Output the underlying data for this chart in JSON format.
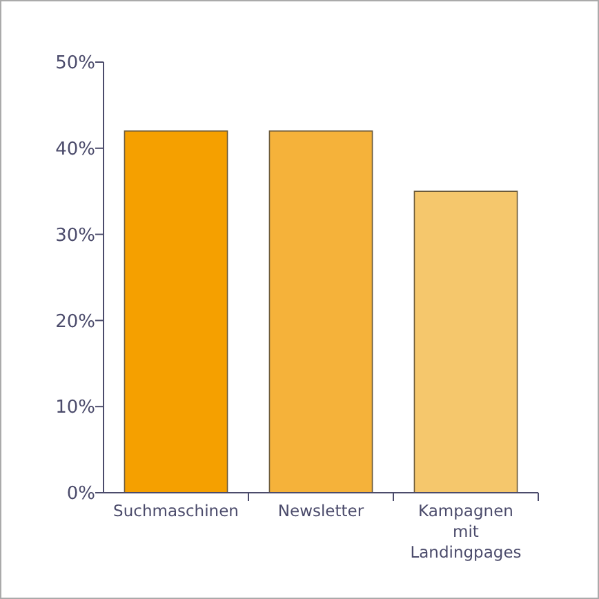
{
  "chart_data": {
    "type": "bar",
    "categories": [
      "Suchmaschinen",
      "Newsletter",
      "Kampagnen mit Landingpages"
    ],
    "values": [
      42,
      42,
      35
    ],
    "colors": [
      "#f5a000",
      "#f5b23a",
      "#f5c76c"
    ],
    "ylim": [
      0,
      50
    ],
    "yticks": [
      {
        "value": 0,
        "label": "0%"
      },
      {
        "value": 10,
        "label": "10%"
      },
      {
        "value": 20,
        "label": "20%"
      },
      {
        "value": 30,
        "label": "30%"
      },
      {
        "value": 40,
        "label": "40%"
      },
      {
        "value": 50,
        "label": "50%"
      }
    ],
    "grid": false
  }
}
